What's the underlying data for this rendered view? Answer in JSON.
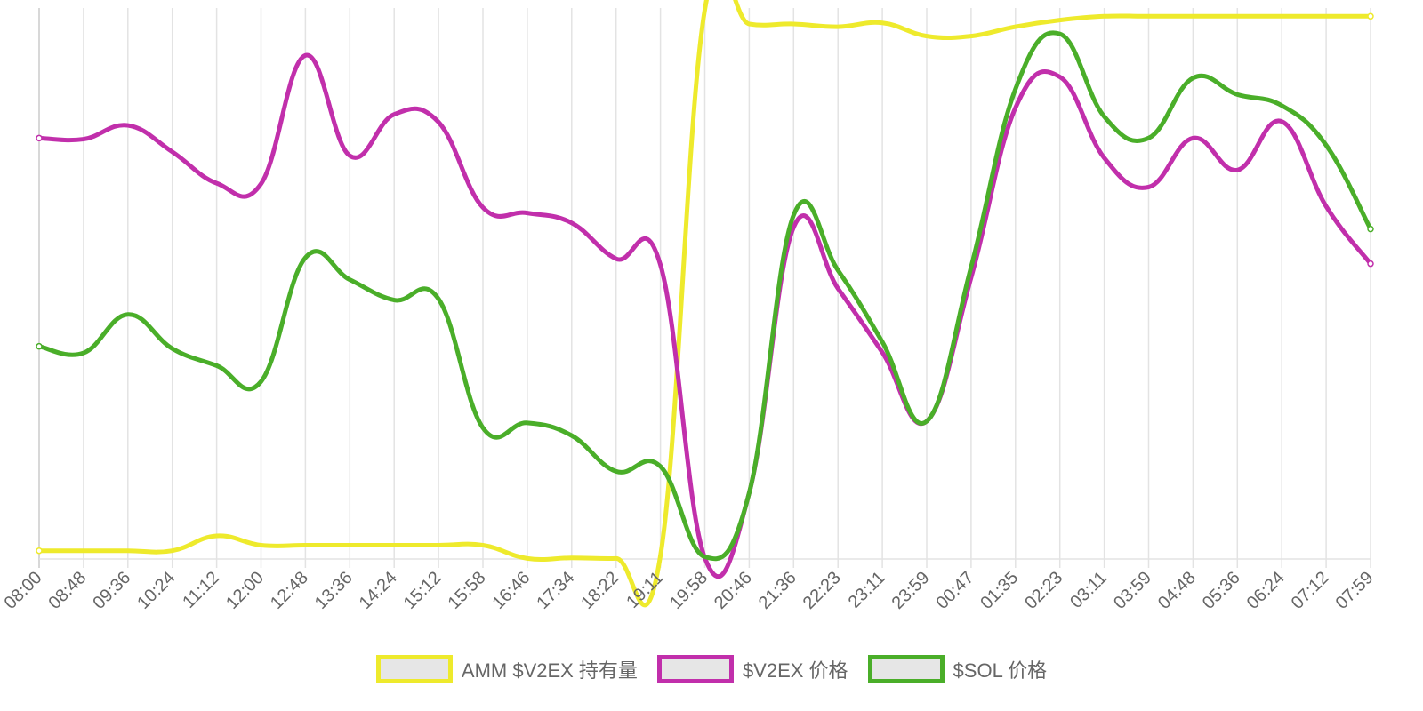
{
  "chart_data": {
    "type": "line",
    "x": [
      "08:00",
      "08:48",
      "09:36",
      "10:24",
      "11:12",
      "12:00",
      "12:48",
      "13:36",
      "14:24",
      "15:12",
      "15:58",
      "16:46",
      "17:34",
      "18:22",
      "19:11",
      "19:58",
      "20:46",
      "21:36",
      "22:23",
      "23:11",
      "23:59",
      "00:47",
      "01:35",
      "02:23",
      "03:11",
      "03:59",
      "04:48",
      "05:36",
      "06:24",
      "07:12",
      "07:59"
    ],
    "ylim": [
      0,
      100
    ],
    "grid": true,
    "legend_position": "bottom",
    "series": [
      {
        "name": "AMM $V2EX 持有量",
        "color": "#eeea2c",
        "values": [
          1.5,
          1.5,
          1.5,
          1.5,
          4.2,
          2.5,
          2.5,
          2.5,
          2.5,
          2.5,
          2.5,
          0.1,
          0.2,
          0.1,
          0.6,
          99.7,
          97.1,
          97.1,
          96.6,
          97.3,
          94.9,
          94.9,
          96.6,
          97.8,
          98.5,
          98.5,
          98.5,
          98.5,
          98.5,
          98.5,
          98.5
        ]
      },
      {
        "name": "$V2EX 价格",
        "color": "#c12fab",
        "values": [
          76.4,
          76.2,
          78.7,
          73.9,
          68.2,
          68.1,
          91.4,
          73.2,
          80.7,
          79.3,
          63.8,
          62.8,
          61.0,
          54.5,
          53.4,
          0.2,
          12.0,
          60.2,
          49.1,
          37.5,
          25.0,
          51.1,
          81.9,
          87.5,
          72.8,
          67.5,
          76.4,
          70.6,
          79.4,
          64.0,
          53.6
        ]
      },
      {
        "name": "$SOL 价格",
        "color": "#4aae29",
        "values": [
          38.6,
          37.4,
          44.4,
          38.2,
          35.1,
          32.2,
          54.7,
          50.7,
          47.0,
          47.2,
          23.8,
          24.7,
          22.4,
          15.9,
          16.8,
          0.4,
          12.0,
          62.4,
          52.4,
          39.4,
          25.0,
          53.0,
          85.3,
          95.3,
          80.3,
          76.4,
          87.3,
          84.3,
          82.3,
          75.1,
          59.9
        ]
      }
    ]
  }
}
